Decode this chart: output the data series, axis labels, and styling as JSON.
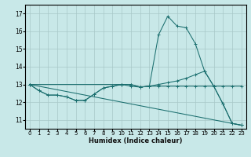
{
  "xlabel": "Humidex (Indice chaleur)",
  "background_color": "#c8e8e8",
  "grid_color": "#a8c8c8",
  "line_color": "#1a6e6e",
  "xlim": [
    -0.5,
    23.5
  ],
  "ylim": [
    10.5,
    17.5
  ],
  "yticks": [
    11,
    12,
    13,
    14,
    15,
    16,
    17
  ],
  "xticks": [
    0,
    1,
    2,
    3,
    4,
    5,
    6,
    7,
    8,
    9,
    10,
    11,
    12,
    13,
    14,
    15,
    16,
    17,
    18,
    19,
    20,
    21,
    22,
    23
  ],
  "lines": [
    {
      "x": [
        0,
        1,
        2,
        3,
        4,
        5,
        6,
        7,
        8,
        9,
        10,
        11,
        12,
        13,
        14,
        15,
        16,
        17,
        18,
        19,
        20,
        21,
        22,
        23
      ],
      "y": [
        13.0,
        12.65,
        12.4,
        12.4,
        12.3,
        12.1,
        12.1,
        12.45,
        12.8,
        12.9,
        13.0,
        13.0,
        12.85,
        12.9,
        15.8,
        16.85,
        16.3,
        16.2,
        15.3,
        13.75,
        12.9,
        11.9,
        10.8,
        10.7
      ]
    },
    {
      "x": [
        0,
        10,
        11,
        12,
        13,
        14,
        15,
        16,
        17,
        18,
        19,
        20,
        21,
        22,
        23
      ],
      "y": [
        13.0,
        13.0,
        12.9,
        12.85,
        12.9,
        13.0,
        13.1,
        13.2,
        13.35,
        13.55,
        13.75,
        12.9,
        11.9,
        10.8,
        10.7
      ]
    },
    {
      "x": [
        0,
        1,
        2,
        3,
        4,
        5,
        6,
        7,
        8,
        9,
        10,
        11,
        12,
        13,
        14,
        15,
        16,
        17,
        18,
        19,
        20,
        21,
        22,
        23
      ],
      "y": [
        13.0,
        12.65,
        12.4,
        12.4,
        12.3,
        12.1,
        12.1,
        12.45,
        12.8,
        12.9,
        13.0,
        13.0,
        12.85,
        12.9,
        12.9,
        12.9,
        12.9,
        12.9,
        12.9,
        12.9,
        12.9,
        12.9,
        12.9,
        12.9
      ]
    },
    {
      "x": [
        0,
        23
      ],
      "y": [
        13.0,
        10.7
      ]
    }
  ]
}
